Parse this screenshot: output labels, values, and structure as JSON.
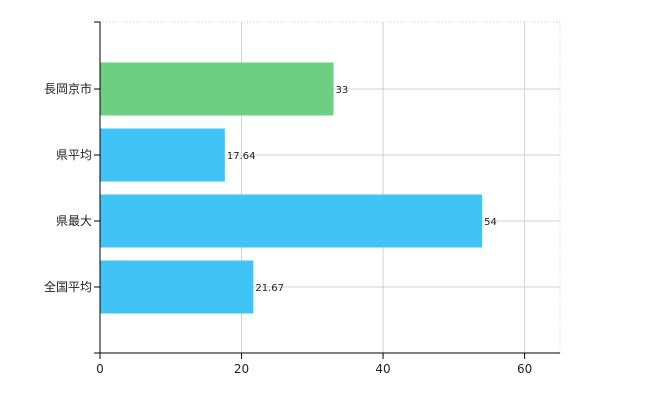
{
  "chart_data": {
    "type": "bar",
    "orientation": "horizontal",
    "categories": [
      "長岡京市",
      "県平均",
      "県最大",
      "全国平均"
    ],
    "values": [
      33,
      17.64,
      54,
      21.67
    ],
    "value_labels": [
      "33",
      "17.64",
      "54",
      "21.67"
    ],
    "colors": [
      "#6ccf82",
      "#3fc4f5",
      "#3fc4f5",
      "#3fc4f5"
    ],
    "xlim": [
      0,
      65
    ],
    "x_ticks": [
      0,
      20,
      40,
      60
    ],
    "x_tick_labels": [
      "0",
      "20",
      "40",
      "60"
    ],
    "grid": true,
    "title": "",
    "xlabel": "",
    "ylabel": ""
  }
}
